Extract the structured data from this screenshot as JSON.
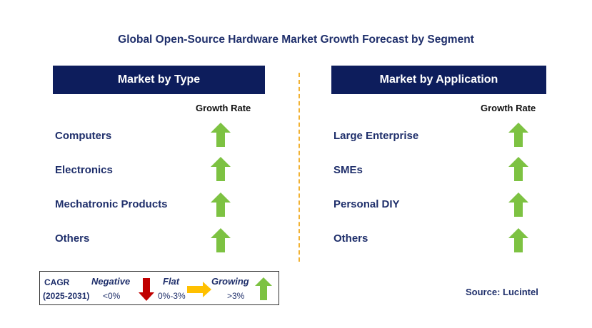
{
  "title": "Global Open-Source Hardware Market Growth Forecast by Segment",
  "left_panel": {
    "header": "Market by Type",
    "growth_label": "Growth Rate",
    "rows": [
      {
        "label": "Computers",
        "trend": "growing"
      },
      {
        "label": "Electronics",
        "trend": "growing"
      },
      {
        "label": "Mechatronic Products",
        "trend": "growing"
      },
      {
        "label": "Others",
        "trend": "growing"
      }
    ]
  },
  "right_panel": {
    "header": "Market by Application",
    "growth_label": "Growth Rate",
    "rows": [
      {
        "label": "Large Enterprise",
        "trend": "growing"
      },
      {
        "label": "SMEs",
        "trend": "growing"
      },
      {
        "label": "Personal DIY",
        "trend": "growing"
      },
      {
        "label": "Others",
        "trend": "growing"
      }
    ]
  },
  "legend": {
    "cagr": "CAGR",
    "period": "(2025-2031)",
    "negative": {
      "label": "Negative",
      "range": "<0%",
      "icon": "red-down-arrow-icon"
    },
    "flat": {
      "label": "Flat",
      "range": "0%-3%",
      "icon": "yellow-right-arrow-icon"
    },
    "growing": {
      "label": "Growing",
      "range": ">3%",
      "icon": "green-up-arrow-icon"
    }
  },
  "source": "Source: Lucintel",
  "colors": {
    "header_bg": "#0d1d5c",
    "title_text": "#1f2f6b",
    "growing": "#7dc242",
    "negative": "#c00000",
    "flat": "#ffc000",
    "divider": "#f2b233"
  }
}
